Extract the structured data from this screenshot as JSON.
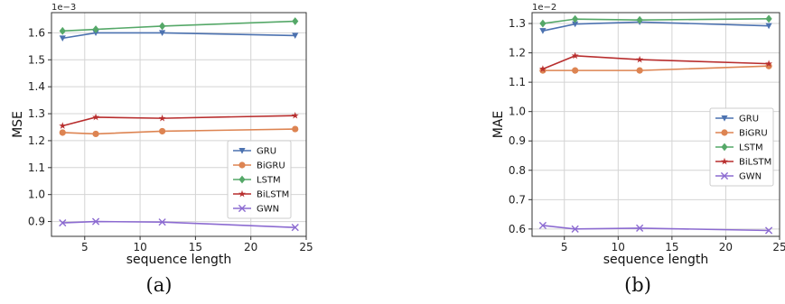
{
  "chart_data": [
    {
      "type": "line",
      "caption": "(a)",
      "xlabel": "sequence length",
      "ylabel": "MSE",
      "scale_label": "1e−3",
      "xlim": [
        2,
        25
      ],
      "ylim": [
        0.845,
        1.675
      ],
      "xticks": [
        5,
        10,
        15,
        20,
        25
      ],
      "yticks": [
        0.9,
        1.0,
        1.1,
        1.2,
        1.3,
        1.4,
        1.5,
        1.6
      ],
      "ytick_labels": [
        "0.9",
        "1.0",
        "1.1",
        "1.2",
        "1.3",
        "1.4",
        "1.5",
        "1.6"
      ],
      "grid": true,
      "legend_position": "center-right",
      "x": [
        3,
        6,
        12,
        24
      ],
      "series": [
        {
          "name": "GRU",
          "color": "#4c72b0",
          "marker": "triangle-down",
          "values": [
            1.58,
            1.6,
            1.6,
            1.59
          ]
        },
        {
          "name": "BiGRU",
          "color": "#dd8452",
          "marker": "circle",
          "values": [
            1.23,
            1.225,
            1.235,
            1.243
          ]
        },
        {
          "name": "LSTM",
          "color": "#55a868",
          "marker": "diamond",
          "values": [
            1.607,
            1.613,
            1.625,
            1.643
          ]
        },
        {
          "name": "BiLSTM",
          "color": "#b82e2e",
          "marker": "star",
          "values": [
            1.255,
            1.287,
            1.283,
            1.293
          ]
        },
        {
          "name": "GWN",
          "color": "#8c6bd1",
          "marker": "x",
          "values": [
            0.895,
            0.9,
            0.898,
            0.878
          ]
        }
      ]
    },
    {
      "type": "line",
      "caption": "(b)",
      "xlabel": "sequence length",
      "ylabel": "MAE",
      "scale_label": "1e−2",
      "xlim": [
        2,
        25
      ],
      "ylim": [
        0.575,
        1.337
      ],
      "xticks": [
        5,
        10,
        15,
        20,
        25
      ],
      "yticks": [
        0.6,
        0.7,
        0.8,
        0.9,
        1.0,
        1.1,
        1.2,
        1.3
      ],
      "ytick_labels": [
        "0.6",
        "0.7",
        "0.8",
        "0.9",
        "1.0",
        "1.1",
        "1.2",
        "1.3"
      ],
      "grid": true,
      "legend_position": "center-right",
      "x": [
        3,
        6,
        12,
        24
      ],
      "series": [
        {
          "name": "GRU",
          "color": "#4c72b0",
          "marker": "triangle-down",
          "values": [
            1.275,
            1.298,
            1.305,
            1.292
          ]
        },
        {
          "name": "BiGRU",
          "color": "#dd8452",
          "marker": "circle",
          "values": [
            1.14,
            1.14,
            1.14,
            1.155
          ]
        },
        {
          "name": "LSTM",
          "color": "#55a868",
          "marker": "diamond",
          "values": [
            1.3,
            1.315,
            1.312,
            1.316
          ]
        },
        {
          "name": "BiLSTM",
          "color": "#b82e2e",
          "marker": "star",
          "values": [
            1.145,
            1.19,
            1.177,
            1.163
          ]
        },
        {
          "name": "GWN",
          "color": "#8c6bd1",
          "marker": "x",
          "values": [
            0.612,
            0.6,
            0.603,
            0.595
          ]
        }
      ]
    }
  ]
}
